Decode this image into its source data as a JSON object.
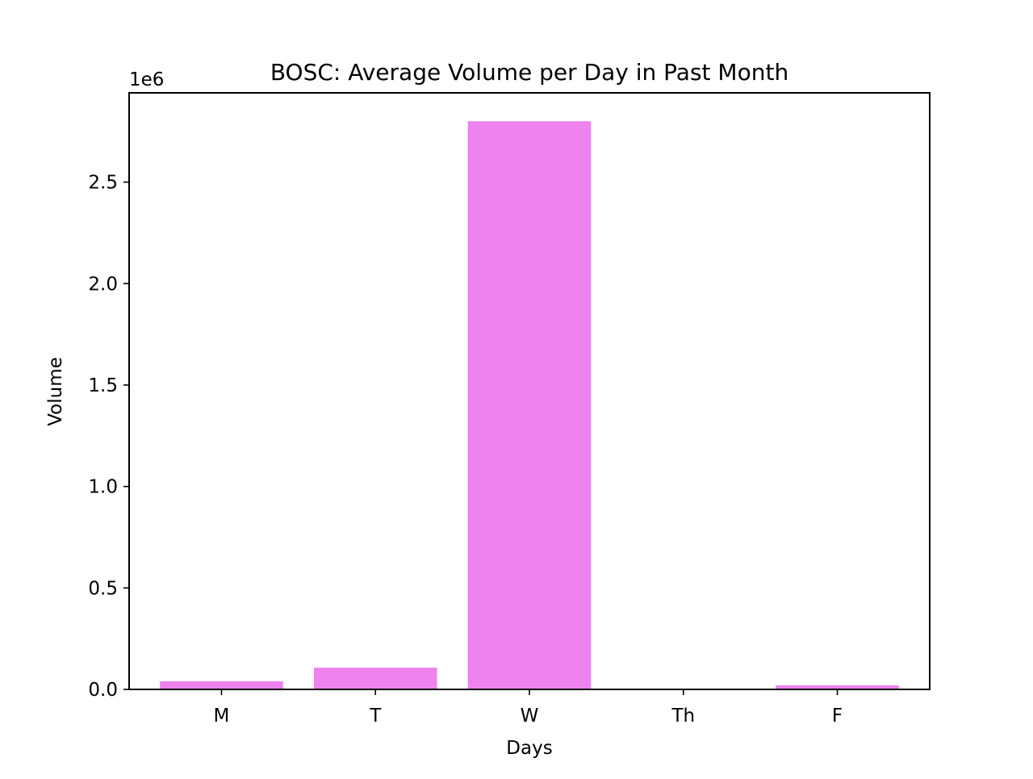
{
  "chart_data": {
    "type": "bar",
    "title": "BOSC: Average Volume per Day in Past Month",
    "xlabel": "Days",
    "ylabel": "Volume",
    "y_offset_label": "1e6",
    "categories": [
      "M",
      "T",
      "W",
      "Th",
      "F"
    ],
    "values": [
      40000,
      107000,
      2800000,
      0,
      20000
    ],
    "ylim": [
      0,
      2940000
    ],
    "y_ticks": [
      0,
      500000,
      1000000,
      1500000,
      2000000,
      2500000
    ],
    "y_tick_labels": [
      "0.0",
      "0.5",
      "1.0",
      "1.5",
      "2.0",
      "2.5"
    ],
    "grid": false,
    "bar_color": "#ee82ee"
  }
}
